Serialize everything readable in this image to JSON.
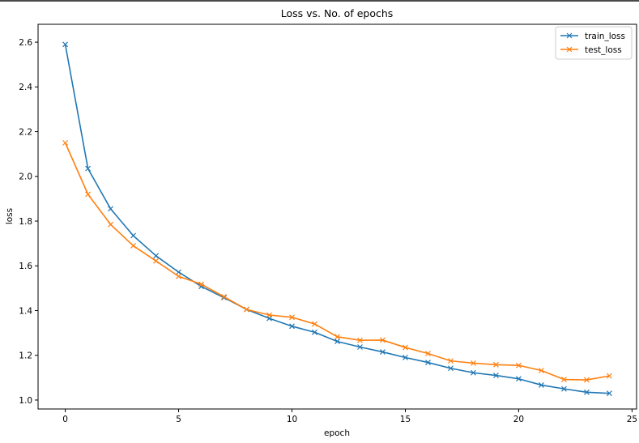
{
  "chart_data": {
    "type": "line",
    "title": "Loss vs. No. of epochs",
    "xlabel": "epoch",
    "ylabel": "loss",
    "xlim": [
      -1.2,
      25.2
    ],
    "ylim": [
      0.96,
      2.68
    ],
    "xticks": [
      0,
      5,
      10,
      15,
      20,
      25
    ],
    "yticks": [
      1.0,
      1.2,
      1.4,
      1.6,
      1.8,
      2.0,
      2.2,
      2.4,
      2.6
    ],
    "grid": false,
    "legend_position": "top-right",
    "marker": "x",
    "x": [
      0,
      1,
      2,
      3,
      4,
      5,
      6,
      7,
      8,
      9,
      10,
      11,
      12,
      13,
      14,
      15,
      16,
      17,
      18,
      19,
      20,
      21,
      22,
      23,
      24
    ],
    "series": [
      {
        "name": "train_loss",
        "color": "#1f77b4",
        "values": [
          2.59,
          2.035,
          1.855,
          1.735,
          1.645,
          1.572,
          1.508,
          1.458,
          1.405,
          1.365,
          1.33,
          1.303,
          1.262,
          1.237,
          1.215,
          1.19,
          1.168,
          1.142,
          1.122,
          1.11,
          1.095,
          1.067,
          1.05,
          1.035,
          1.03
        ]
      },
      {
        "name": "test_loss",
        "color": "#ff7f0e",
        "values": [
          2.15,
          1.92,
          1.785,
          1.69,
          1.622,
          1.553,
          1.518,
          1.462,
          1.405,
          1.38,
          1.37,
          1.34,
          1.283,
          1.267,
          1.268,
          1.235,
          1.208,
          1.175,
          1.165,
          1.158,
          1.155,
          1.132,
          1.092,
          1.09,
          1.108
        ]
      }
    ]
  }
}
